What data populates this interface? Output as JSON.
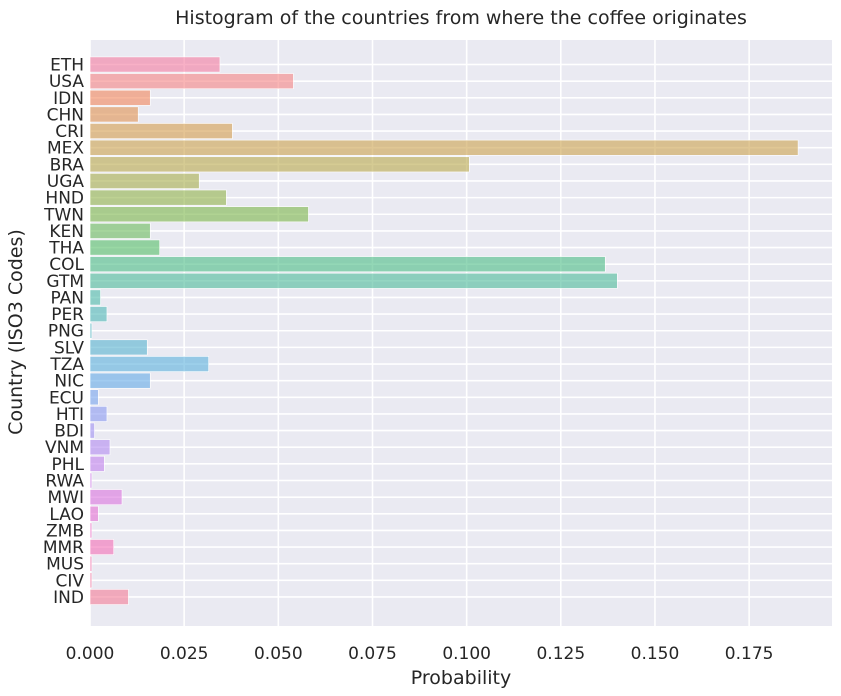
{
  "chart_data": {
    "type": "bar",
    "orientation": "horizontal",
    "title": "Histogram of the countries from where the coffee originates",
    "xlabel": "Probability",
    "ylabel": "Country (ISO3 Codes)",
    "xlim": [
      0,
      0.197
    ],
    "xticks": [
      0.0,
      0.025,
      0.05,
      0.075,
      0.1,
      0.125,
      0.15,
      0.175
    ],
    "xtick_labels": [
      "0.000",
      "0.025",
      "0.050",
      "0.075",
      "0.100",
      "0.125",
      "0.150",
      "0.175"
    ],
    "grid": true,
    "background_color": "#EAEAF2",
    "categories": [
      "ETH",
      "USA",
      "IDN",
      "CHN",
      "CRI",
      "MEX",
      "BRA",
      "UGA",
      "HND",
      "TWN",
      "KEN",
      "THA",
      "COL",
      "GTM",
      "PAN",
      "PER",
      "PNG",
      "SLV",
      "TZA",
      "NIC",
      "ECU",
      "HTI",
      "BDI",
      "VNM",
      "PHL",
      "RWA",
      "MWI",
      "LAO",
      "ZMB",
      "MMR",
      "MUS",
      "CIV",
      "IND"
    ],
    "values": [
      0.0345,
      0.054,
      0.016,
      0.0128,
      0.0378,
      0.188,
      0.1007,
      0.029,
      0.0362,
      0.058,
      0.016,
      0.0185,
      0.1368,
      0.14,
      0.0028,
      0.0045,
      0.0005,
      0.0152,
      0.0315,
      0.016,
      0.0022,
      0.0045,
      0.0012,
      0.0053,
      0.0038,
      0.0005,
      0.0085,
      0.0022,
      0.0005,
      0.0063,
      0.0005,
      0.0005,
      0.0102
    ],
    "colors": [
      "#F37BA0",
      "#F58484",
      "#F2855A",
      "#E09150",
      "#D39D4D",
      "#CBA24C",
      "#B9A84B",
      "#A6AD4B",
      "#91B24A",
      "#7BB649",
      "#6BBA5C",
      "#55BE67",
      "#4BBD85",
      "#4CBB9A",
      "#4DBAA8",
      "#4FB8B5",
      "#52B6C2",
      "#56B3CF",
      "#5BB0DC",
      "#64AAE6",
      "#76A3EC",
      "#8B9AF0",
      "#A091F2",
      "#B38AF0",
      "#C282EC",
      "#CF7BE6",
      "#DB73DE",
      "#E56FD2",
      "#EE6DC3",
      "#F36EB5",
      "#F472AA",
      "#F3769F",
      "#F37B96"
    ]
  }
}
